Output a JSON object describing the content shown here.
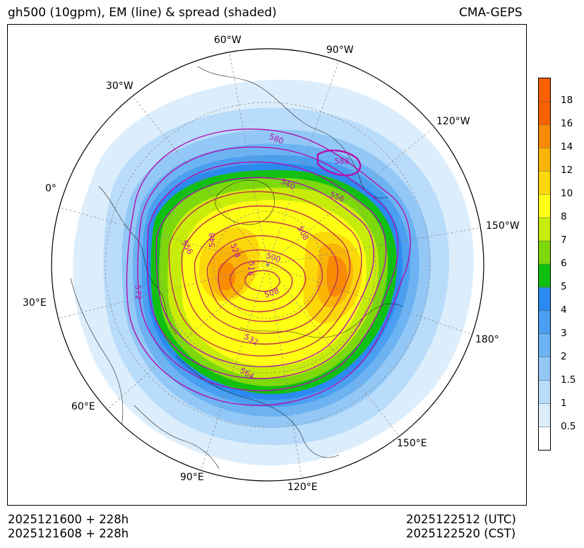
{
  "header": {
    "title": "gh500 (10gpm), EM (line) & spread (shaded)",
    "model": "CMA-GEPS"
  },
  "footer": {
    "init_utc": "2025121600 + 228h",
    "init_cst": "2025121608 + 228h",
    "valid_utc": "2025122512 (UTC)",
    "valid_cst": "2025122520 (CST)"
  },
  "longitude_labels": {
    "lon_60w": "60°W",
    "lon_90w": "90°W",
    "lon_30w": "30°W",
    "lon_120w": "120°W",
    "lon_0": "0°",
    "lon_150w": "150°W",
    "lon_30e": "30°E",
    "lon_180": "180°",
    "lon_60e": "60°E",
    "lon_150e": "150°E",
    "lon_90e": "90°E",
    "lon_120e": "120°E"
  },
  "contour_labels": [
    "580",
    "588",
    "540",
    "556",
    "548",
    "556",
    "524",
    "508",
    "500",
    "516",
    "572",
    "508",
    "532",
    "564"
  ],
  "colorbar": {
    "levels": [
      "0.5",
      "1",
      "1.5",
      "2",
      "3",
      "4",
      "5",
      "6",
      "7",
      "8",
      "10",
      "12",
      "14",
      "16",
      "18"
    ],
    "colors": [
      "#ffffff",
      "#dceefc",
      "#b8dcfa",
      "#93c8f6",
      "#6db3f2",
      "#4a9ff0",
      "#2a8af0",
      "#10c010",
      "#7dd80c",
      "#c8ec0a",
      "#ffff14",
      "#fcd80a",
      "#fab406",
      "#f88a04",
      "#f86002",
      "#fe6006"
    ]
  },
  "shading_colors": {
    "s05": "#dceefc",
    "s1": "#b8dcfa",
    "s2": "#93c8f6",
    "s3": "#6db3f2",
    "s4": "#4a9ff0",
    "s5": "#2a8af0",
    "s6": "#10c010",
    "s7": "#7dd80c",
    "s8": "#c8ec0a",
    "s10": "#ffff14",
    "s12": "#fcd80a",
    "s14": "#fab406",
    "s16": "#f88a04",
    "contour_em": "#b010b0",
    "contour_red": "#c03050"
  }
}
